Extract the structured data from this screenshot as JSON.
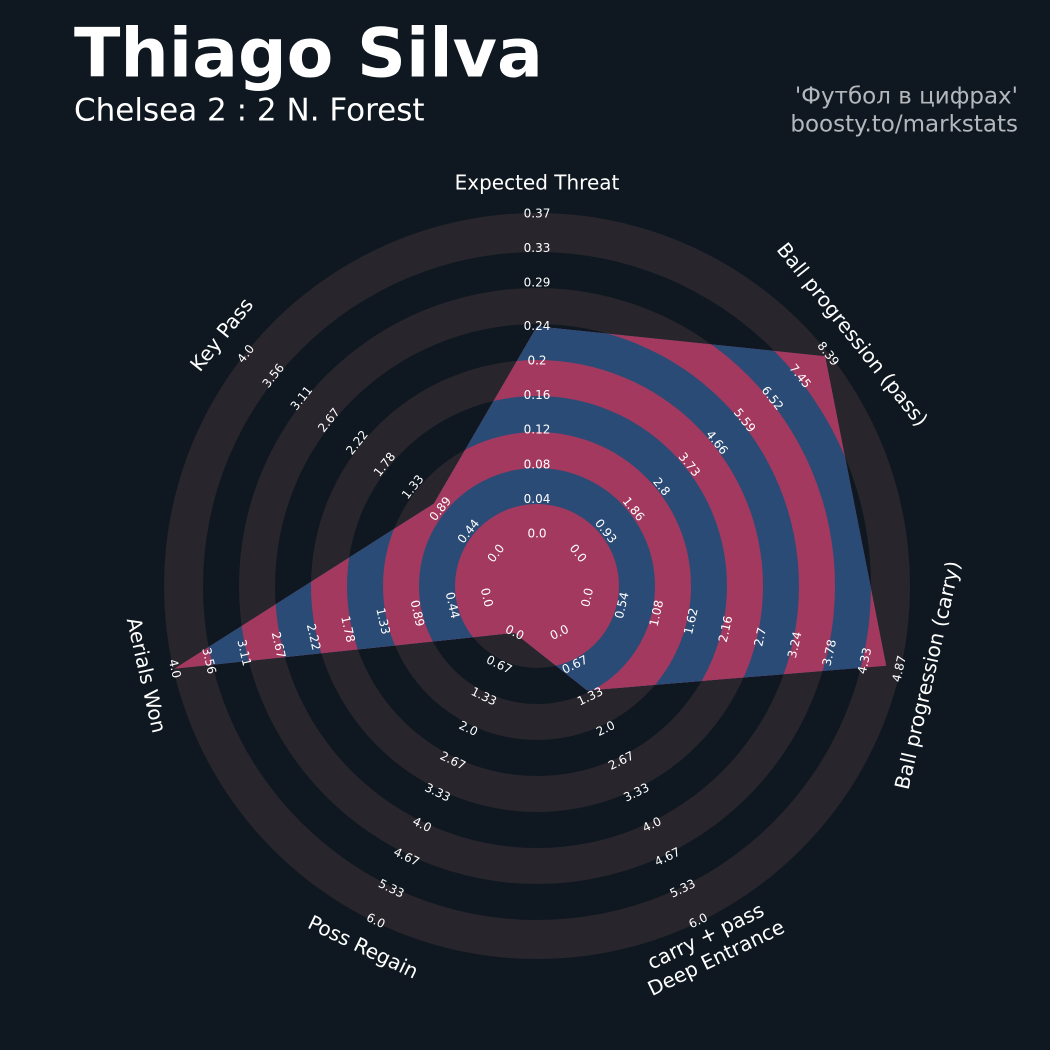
{
  "chart_data": {
    "type": "radar",
    "title": "Thiago Silva",
    "subtitle": "Chelsea 2 : 2 N. Forest",
    "credits": [
      "'Футбол в цифрах'",
      "boosty.to/markstats"
    ],
    "axes": [
      {
        "label": [
          "Expected Threat"
        ],
        "lim": [
          0,
          0.37
        ],
        "ticks": [
          {
            "value": 0,
            "label": "0.0"
          },
          0.04,
          0.08,
          0.12,
          0.16,
          0.2,
          0.24,
          0.29,
          0.33,
          0.37
        ]
      },
      {
        "label": [
          "Ball progression (pass)"
        ],
        "lim": [
          0,
          8.39
        ],
        "ticks": [
          {
            "value": 0,
            "label": "0.0"
          },
          0.93,
          1.86,
          2.8,
          3.73,
          4.66,
          5.59,
          6.52,
          7.45,
          8.39
        ]
      },
      {
        "label": [
          "Ball progression (carry)"
        ],
        "lim": [
          0,
          4.87
        ],
        "ticks": [
          {
            "value": 0,
            "label": "0.0"
          },
          0.54,
          1.08,
          1.62,
          2.16,
          2.7,
          3.24,
          3.78,
          4.33,
          4.87
        ]
      },
      {
        "label": [
          "Deep Entrance",
          "carry + pass"
        ],
        "lim": [
          0,
          6
        ],
        "ticks": [
          {
            "value": 0,
            "label": "0.0"
          },
          0.67,
          1.33,
          {
            "value": 2,
            "label": "2.0"
          },
          2.67,
          3.33,
          {
            "value": 4,
            "label": "4.0"
          },
          4.67,
          5.33,
          {
            "value": 6,
            "label": "6.0"
          }
        ]
      },
      {
        "label": [
          "Poss Regain"
        ],
        "lim": [
          0,
          6
        ],
        "ticks": [
          {
            "value": 0,
            "label": "0.0"
          },
          0.67,
          1.33,
          {
            "value": 2,
            "label": "2.0"
          },
          2.67,
          3.33,
          {
            "value": 4,
            "label": "4.0"
          },
          4.67,
          5.33,
          {
            "value": 6,
            "label": "6.0"
          }
        ]
      },
      {
        "label": [
          "Aerials Won"
        ],
        "lim": [
          0,
          4
        ],
        "ticks": [
          {
            "value": 0,
            "label": "0.0"
          },
          0.44,
          0.89,
          1.33,
          1.78,
          2.22,
          2.67,
          3.11,
          3.56,
          {
            "value": 4,
            "label": "4.0"
          }
        ]
      },
      {
        "label": [
          "Key Pass"
        ],
        "lim": [
          0,
          4
        ],
        "ticks": [
          {
            "value": 0,
            "label": "0.0"
          },
          0.44,
          0.89,
          1.33,
          1.78,
          2.22,
          2.67,
          3.11,
          3.56,
          {
            "value": 4,
            "label": "4.0"
          }
        ]
      }
    ],
    "series": [
      {
        "color": "#2a4b76",
        "highlight_color": "#a3395e",
        "values": [
          0.24,
          8.3,
          4.66,
          1.2,
          0.0,
          4.0,
          1.0
        ]
      }
    ],
    "ring_color": "#28252c",
    "background": "#0f1820"
  }
}
